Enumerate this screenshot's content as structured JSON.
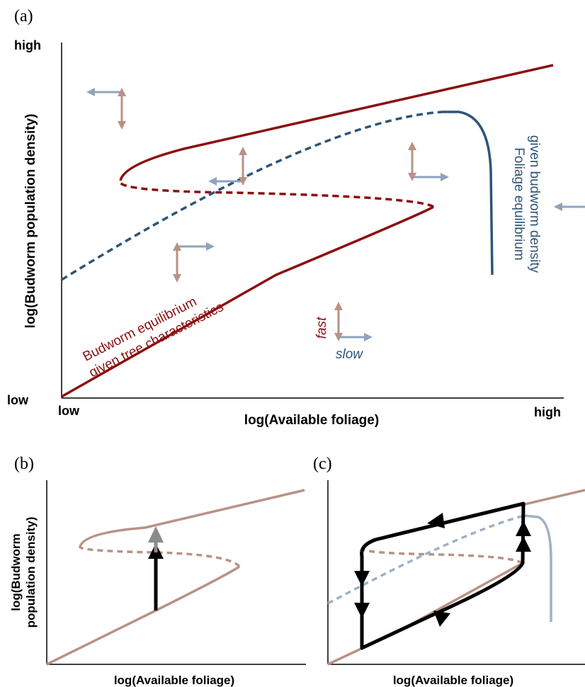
{
  "panel_a": {
    "label": "(a)",
    "y_axis_label": "log(Budworm population density)",
    "x_axis_label": "log(Available foliage)",
    "y_high": "high",
    "y_low": "low",
    "x_low": "low",
    "x_high": "high",
    "budworm_curve_label_line1": "Budworm equilibrium",
    "budworm_curve_label_line2": "given tree characteristics",
    "foliage_curve_label_line1": "Foliage equilibrium",
    "foliage_curve_label_line2": "given budworm density",
    "legend_fast": "fast",
    "legend_slow": "slow"
  },
  "panel_b": {
    "label": "(b)",
    "y_axis_label_line1": "log(Budworm",
    "y_axis_label_line2": "population density)",
    "x_axis_label": "log(Available foliage)"
  },
  "panel_c": {
    "label": "(c)",
    "x_axis_label": "log(Available foliage)"
  },
  "colors": {
    "budworm": "#8b1010",
    "foliage": "#2e5577",
    "fast_arrow": "#b99286",
    "slow_arrow": "#8da4bd",
    "faded_budworm": "#b99286",
    "faded_foliage": "#9fb1c3",
    "trajectory": "#000000",
    "grey_arrow": "#8a8a8a"
  }
}
